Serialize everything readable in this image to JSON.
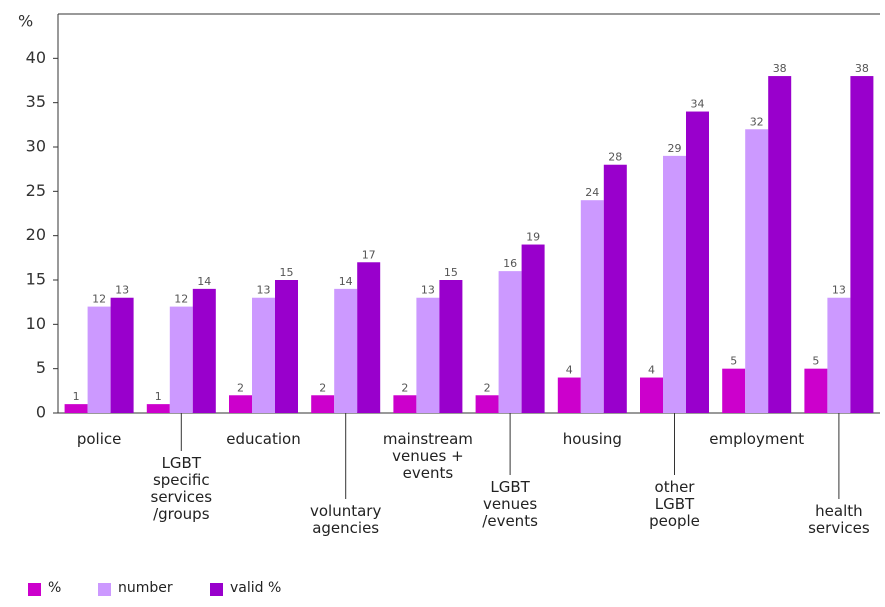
{
  "chart_data": {
    "type": "bar",
    "y_label": "%",
    "categories": [
      "police",
      "LGBT\nspecific\nservices\n/groups",
      "education",
      "voluntary\nagencies",
      "mainstream\nvenues +\nevents",
      "LGBT\nvenues\n/events",
      "housing",
      "other\nLGBT\npeople",
      "employment",
      "health\nservices"
    ],
    "series": [
      {
        "name": "%",
        "color": "#cc00cc",
        "values": [
          1,
          1,
          2,
          2,
          2,
          2,
          4,
          4,
          5,
          5
        ]
      },
      {
        "name": "number",
        "color": "#cc99ff",
        "values": [
          12,
          12,
          13,
          14,
          13,
          16,
          24,
          29,
          32,
          13
        ]
      },
      {
        "name": "valid %",
        "color": "#9900cc",
        "values": [
          13,
          14,
          15,
          17,
          15,
          19,
          28,
          34,
          38,
          38
        ]
      }
    ],
    "ylim": [
      0,
      45
    ],
    "yticks": [
      0,
      5,
      10,
      15,
      20,
      25,
      30,
      35,
      40
    ],
    "grid": false
  }
}
